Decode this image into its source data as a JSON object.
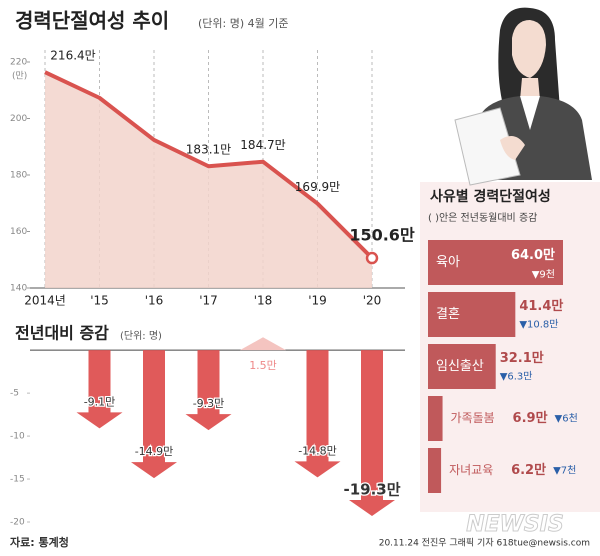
{
  "chart_data": [
    {
      "type": "area",
      "title": "경력단절여성 추이",
      "subtitle": "(단위: 명) 4월 기준",
      "y_unit": "(만)",
      "categories": [
        "2014년",
        "'15",
        "'16",
        "'17",
        "'18",
        "'19",
        "'20"
      ],
      "values": [
        216.4,
        207.3,
        192.4,
        183.1,
        184.7,
        169.9,
        150.6
      ],
      "value_labels": [
        "216.4만",
        null,
        null,
        "183.1만",
        "184.7만",
        "169.9만",
        "150.6만"
      ],
      "color": "#d9534f",
      "ylim": [
        140,
        220
      ],
      "yticks": [
        140,
        160,
        180,
        200,
        220
      ]
    },
    {
      "type": "arrow",
      "title": "전년대비 증감",
      "subtitle": "(단위: 명)",
      "categories": [
        null,
        null,
        null,
        null,
        null,
        null
      ],
      "values": [
        -9.1,
        -14.9,
        -9.3,
        1.5,
        -14.8,
        -19.3
      ],
      "value_labels": [
        "-9.1만",
        "-14.9만",
        "-9.3만",
        "1.5만",
        "-14.8만",
        "-19.3만"
      ],
      "color": "#e05a5a",
      "ylim": [
        -20,
        2
      ],
      "yticks": [
        -5,
        -10,
        -15,
        -20
      ]
    },
    {
      "type": "hbar",
      "title": "사유별 경력단절여성",
      "subtitle": "( )안은 전년동월대비 증감",
      "categories": [
        "육아",
        "결혼",
        "임신출산",
        "가족돌봄",
        "자녀교육"
      ],
      "values": [
        64.0,
        41.4,
        32.1,
        6.9,
        6.2
      ],
      "value_labels": [
        "64.0만",
        "41.4만",
        "32.1만",
        "6.9만",
        "6.2만"
      ],
      "changes": [
        -0.9,
        -10.8,
        -6.3,
        -0.6,
        -0.7
      ],
      "change_labels": [
        "▼9천",
        "▼10.8만",
        "▼6.3만",
        "▼6천",
        "▼7천"
      ],
      "color": "#c0595b"
    }
  ],
  "source": "자료: 통계청",
  "credit": "20.11.24 전진우 그래픽 기자 618tue@newsis.com",
  "watermark": "NEWSIS"
}
